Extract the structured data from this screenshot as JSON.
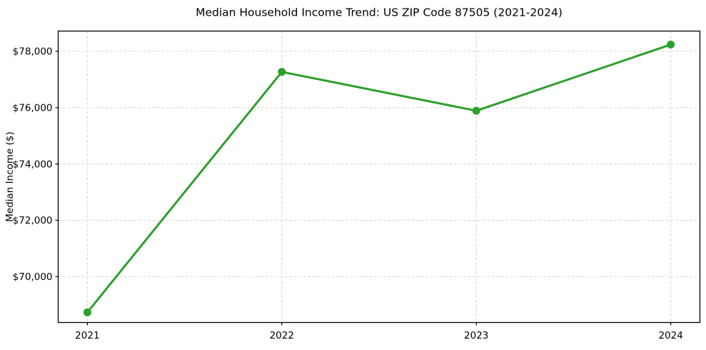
{
  "chart_data": {
    "type": "line",
    "title": "Median Household Income Trend: US ZIP Code 87505 (2021-2024)",
    "xlabel": "",
    "ylabel": "Median Income ($)",
    "categories": [
      "2021",
      "2022",
      "2023",
      "2024"
    ],
    "values": [
      68730,
      77270,
      75890,
      78240
    ],
    "value_labels": [
      "$68,730",
      "$77,270",
      "$75,890",
      "$78,240"
    ],
    "ytick_values": [
      70000,
      72000,
      74000,
      76000,
      78000
    ],
    "ytick_labels": [
      "$70,000",
      "$72,000",
      "$74,000",
      "$76,000",
      "$78,000"
    ],
    "ylim": [
      68370,
      78720
    ],
    "xlim_index": [
      -0.15,
      3.15
    ],
    "grid": "both, dashed",
    "legend": "none",
    "style": {
      "line_color": "#2ca02c",
      "marker": "circle",
      "marker_size": 11,
      "line_width": 3,
      "grid_color": "#d5d5d5",
      "axis_color": "#000000",
      "text_color": "#000000",
      "background": "#ffffff"
    }
  }
}
